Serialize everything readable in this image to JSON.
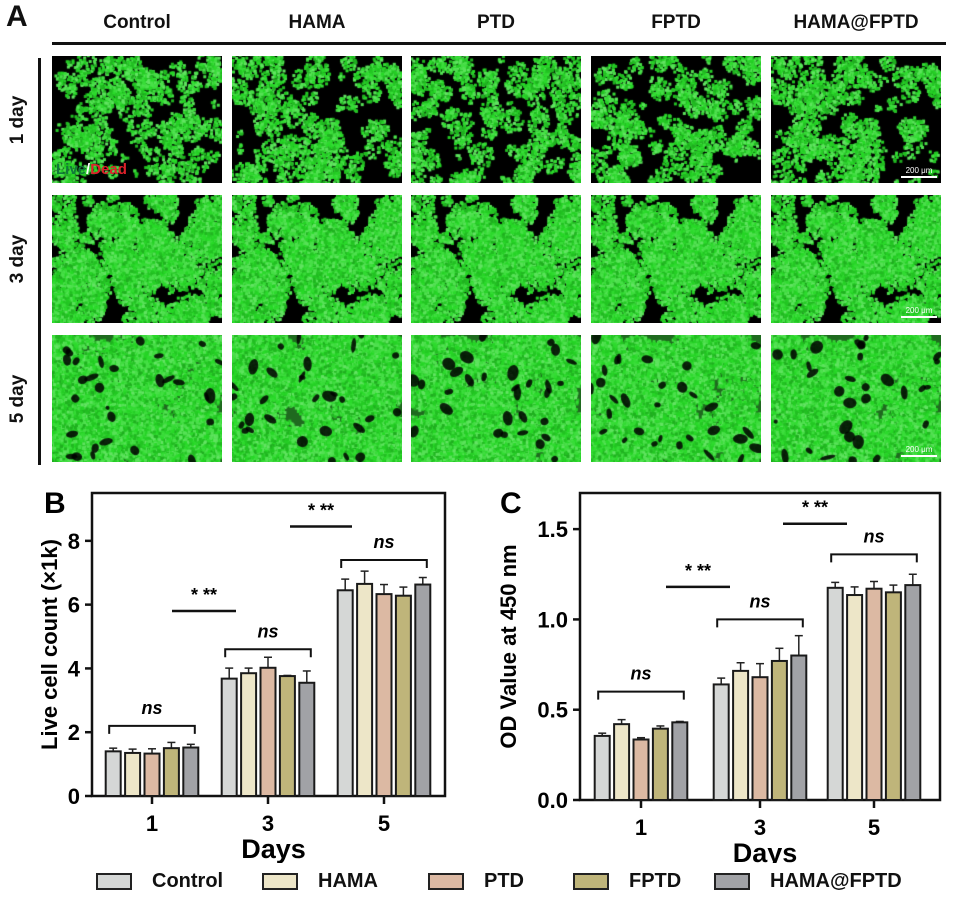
{
  "panel_a": {
    "letter": "A",
    "columns": [
      "Control",
      "HAMA",
      "PTD",
      "FPTD",
      "HAMA@FPTD"
    ],
    "rows": [
      "1 day",
      "3 day",
      "5 day"
    ],
    "row_density": [
      0.28,
      0.62,
      0.85
    ],
    "stain_live": "Live",
    "stain_sep": "/",
    "stain_dead": "Dead",
    "scale_bar": "200 μm",
    "live_color": "#2fd12f",
    "dead_color": "#e0202a"
  },
  "chart_data": [
    {
      "id": "B",
      "type": "bar",
      "letter": "B",
      "title": "",
      "xlabel": "Days",
      "ylabel": "Live cell count (×1k)",
      "categories": [
        "1",
        "3",
        "5"
      ],
      "ylim": [
        0,
        9.5
      ],
      "yticks": [
        "0",
        "2",
        "4",
        "6",
        "8"
      ],
      "ytick_values": [
        0,
        2,
        4,
        6,
        8
      ],
      "grid": false,
      "series": [
        {
          "name": "Control",
          "values": [
            1.4,
            3.68,
            6.45
          ],
          "errors": [
            0.1,
            0.33,
            0.35
          ]
        },
        {
          "name": "HAMA",
          "values": [
            1.35,
            3.85,
            6.65
          ],
          "errors": [
            0.12,
            0.16,
            0.4
          ]
        },
        {
          "name": "PTD",
          "values": [
            1.33,
            4.02,
            6.33
          ],
          "errors": [
            0.15,
            0.33,
            0.3
          ]
        },
        {
          "name": "FPTD",
          "values": [
            1.5,
            3.76,
            6.28
          ],
          "errors": [
            0.18,
            0.02,
            0.27
          ]
        },
        {
          "name": "HAMA@FPTD",
          "values": [
            1.52,
            3.55,
            6.63
          ],
          "errors": [
            0.1,
            0.37,
            0.22
          ]
        }
      ],
      "annotations": {
        "within_group": [
          "ns",
          "ns",
          "ns"
        ],
        "between_groups": [
          "* **",
          "* **"
        ]
      }
    },
    {
      "id": "C",
      "type": "bar",
      "letter": "C",
      "title": "",
      "xlabel": "Days",
      "ylabel": "OD Value at 450 nm",
      "categories": [
        "1",
        "3",
        "5"
      ],
      "ylim": [
        0,
        1.7
      ],
      "yticks": [
        "0.0",
        "0.5",
        "1.0",
        "1.5"
      ],
      "ytick_values": [
        0,
        0.5,
        1.0,
        1.5
      ],
      "grid": false,
      "series": [
        {
          "name": "Control",
          "values": [
            0.355,
            0.64,
            1.175
          ],
          "errors": [
            0.015,
            0.035,
            0.03
          ]
        },
        {
          "name": "HAMA",
          "values": [
            0.42,
            0.715,
            1.135
          ],
          "errors": [
            0.025,
            0.045,
            0.045
          ]
        },
        {
          "name": "PTD",
          "values": [
            0.335,
            0.68,
            1.17
          ],
          "errors": [
            0.01,
            0.075,
            0.04
          ]
        },
        {
          "name": "FPTD",
          "values": [
            0.395,
            0.77,
            1.15
          ],
          "errors": [
            0.015,
            0.07,
            0.04
          ]
        },
        {
          "name": "HAMA@FPTD",
          "values": [
            0.43,
            0.8,
            1.19
          ],
          "errors": [
            0.005,
            0.11,
            0.06
          ]
        }
      ],
      "annotations": {
        "within_group": [
          "ns",
          "ns",
          "ns"
        ],
        "between_groups": [
          "* **",
          "* **"
        ]
      }
    }
  ],
  "legend": [
    {
      "label": "Control",
      "color": "#d5d7d6"
    },
    {
      "label": "HAMA",
      "color": "#ede6c8"
    },
    {
      "label": "PTD",
      "color": "#dcb9a3"
    },
    {
      "label": "FPTD",
      "color": "#bfb57a"
    },
    {
      "label": "HAMA@FPTD",
      "color": "#a1a2a6"
    }
  ]
}
